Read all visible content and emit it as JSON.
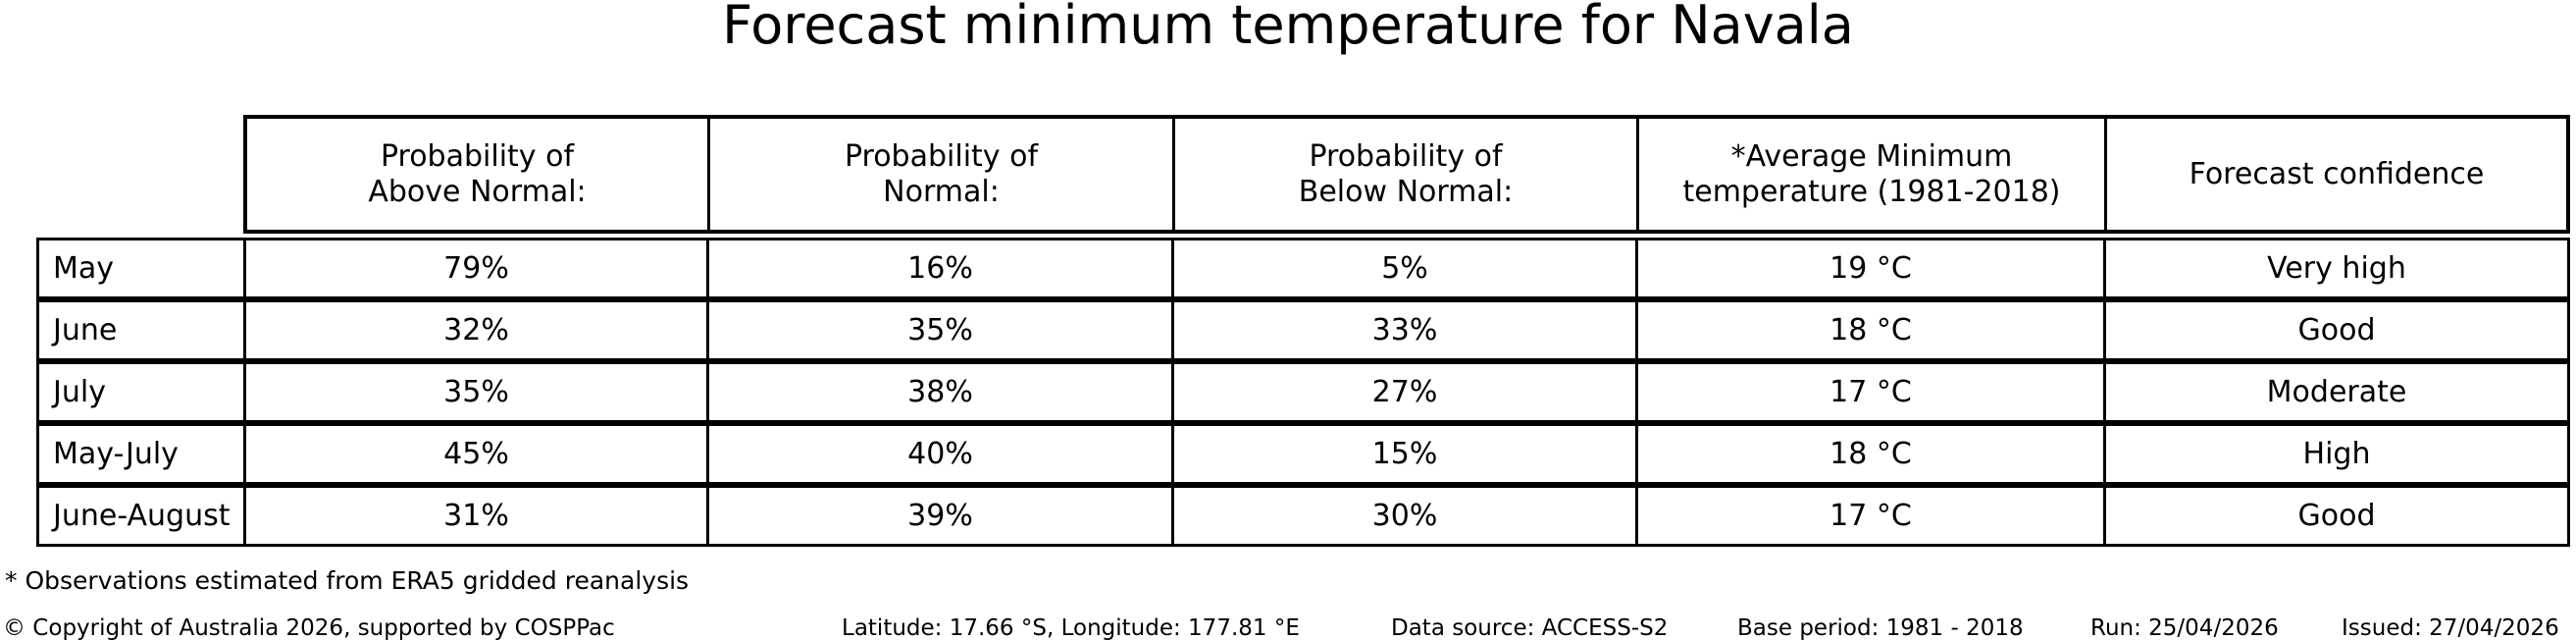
{
  "title": "Forecast minimum temperature for Navala",
  "table": {
    "headers": [
      "Probability of\nAbove Normal:",
      "Probability of\nNormal:",
      "Probability of\nBelow Normal:",
      "*Average Minimum\ntemperature (1981-2018)",
      "Forecast confidence"
    ],
    "rows": [
      [
        "May",
        "79%",
        "16%",
        "5%",
        "19 °C",
        "Very high"
      ],
      [
        "June",
        "32%",
        "35%",
        "33%",
        "18 °C",
        "Good"
      ],
      [
        "July",
        "35%",
        "38%",
        "27%",
        "17 °C",
        "Moderate"
      ],
      [
        "May-July",
        "45%",
        "40%",
        "15%",
        "18 °C",
        "High"
      ],
      [
        "June-August",
        "31%",
        "39%",
        "30%",
        "17 °C",
        "Good"
      ]
    ]
  },
  "footnote": "* Observations estimated from ERA5 gridded reanalysis",
  "footer": {
    "copyright": "© Copyright of Australia 2026, supported by COSPPac",
    "location": "Latitude: 17.66 °S, Longitude: 177.81 °E",
    "data_source": "Data source: ACCESS-S2",
    "base_period": "Base period: 1981 - 2018",
    "run": "Run: 25/04/2026",
    "issued": "Issued: 27/04/2026"
  },
  "colors": {
    "background": "#ffffff",
    "text": "#000000",
    "border": "#000000"
  },
  "chart_data": {
    "type": "table",
    "title": "Forecast minimum temperature for Navala",
    "columns": [
      "",
      "Probability of Above Normal:",
      "Probability of Normal:",
      "Probability of Below Normal:",
      "*Average Minimum temperature (1981-2018)",
      "Forecast confidence"
    ],
    "rows": [
      [
        "May",
        "79%",
        "16%",
        "5%",
        "19 °C",
        "Very high"
      ],
      [
        "June",
        "32%",
        "35%",
        "33%",
        "18 °C",
        "Good"
      ],
      [
        "July",
        "35%",
        "38%",
        "27%",
        "17 °C",
        "Moderate"
      ],
      [
        "May-July",
        "45%",
        "40%",
        "15%",
        "18 °C",
        "High"
      ],
      [
        "June-August",
        "31%",
        "39%",
        "30%",
        "17 °C",
        "Good"
      ]
    ],
    "probabilities_percent": {
      "categories": [
        "May",
        "June",
        "July",
        "May-July",
        "June-August"
      ],
      "series": [
        {
          "name": "Above Normal",
          "values": [
            79,
            32,
            35,
            45,
            31
          ]
        },
        {
          "name": "Normal",
          "values": [
            16,
            35,
            38,
            40,
            39
          ]
        },
        {
          "name": "Below Normal",
          "values": [
            5,
            33,
            27,
            15,
            30
          ]
        }
      ]
    },
    "average_min_temp_c": [
      19,
      18,
      17,
      18,
      17
    ],
    "footnote": "* Observations estimated from ERA5 gridded reanalysis"
  }
}
